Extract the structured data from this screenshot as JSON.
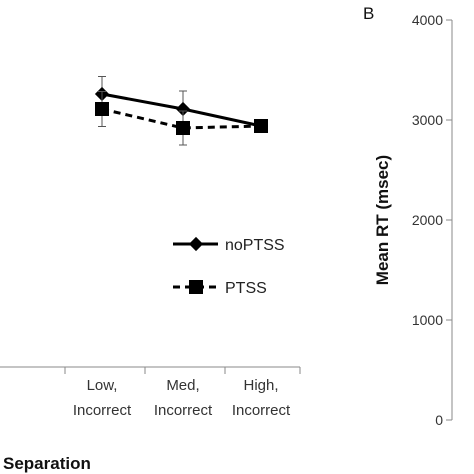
{
  "panel_label": "B",
  "chart_data": [
    {
      "type": "line",
      "categories": [
        "Low, Incorrect",
        "Med, Incorrect",
        "High, Incorrect"
      ],
      "category_lines": [
        [
          "Low,",
          "Incorrect"
        ],
        [
          "Med,",
          "Incorrect"
        ],
        [
          "High,",
          "Incorrect"
        ]
      ],
      "xlabel": "Separation",
      "ylabel": "",
      "ylim": [
        0,
        4000
      ],
      "series": [
        {
          "name": "noPTSS",
          "values": [
            3260,
            3110,
            2940
          ],
          "error": [
            175,
            180,
            40
          ],
          "marker": "diamond",
          "line_style": "solid",
          "color": "#000000"
        },
        {
          "name": "PTSS",
          "values": [
            3110,
            2920,
            2940
          ],
          "error": [
            175,
            170,
            40
          ],
          "marker": "square",
          "line_style": "dashed",
          "color": "#000000"
        }
      ],
      "legend_position": "bottom-right",
      "grid": false
    },
    {
      "type": "axis",
      "ylabel": "Mean RT (msec)",
      "ylim": [
        0,
        4000
      ],
      "yticks": [
        "0",
        "1000",
        "2000",
        "3000",
        "4000"
      ],
      "grid": false
    }
  ]
}
